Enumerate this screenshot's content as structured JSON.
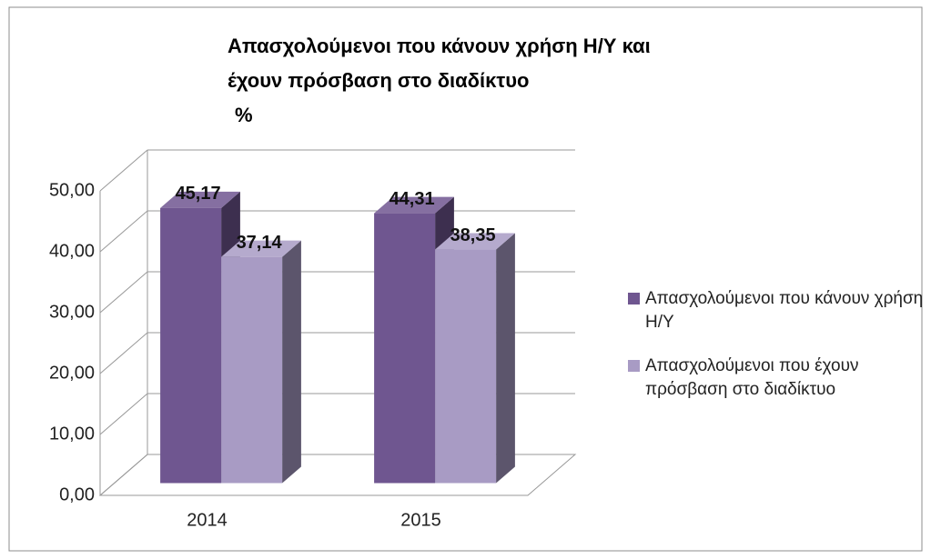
{
  "chart_data": {
    "type": "bar3d",
    "title": [
      "Απασχολούμενοι που κάνουν χρήση Η/Υ και",
      "έχουν πρόσβαση στο διαδίκτυο",
      "%"
    ],
    "categories": [
      "2014",
      "2015"
    ],
    "series": [
      {
        "name": "Απασχολούμενοι που κάνουν χρήση Η/Υ",
        "color": "#6f5690",
        "values": [
          45.17,
          44.31
        ],
        "value_labels": [
          "45,17",
          "44,31"
        ]
      },
      {
        "name": "Απασχολούμενοι που έχουν πρόσβαση στο διαδίκτυο",
        "color": "#a89bc4",
        "values": [
          37.14,
          38.35
        ],
        "value_labels": [
          "37,14",
          "38,35"
        ]
      }
    ],
    "ylim": [
      0,
      50
    ],
    "yticks": [
      {
        "value": 0,
        "label": "0,00"
      },
      {
        "value": 10,
        "label": "10,00"
      },
      {
        "value": 20,
        "label": "20,00"
      },
      {
        "value": 30,
        "label": "30,00"
      },
      {
        "value": 40,
        "label": "40,00"
      },
      {
        "value": 50,
        "label": "50,00"
      }
    ],
    "grid": true,
    "legend": "right"
  }
}
